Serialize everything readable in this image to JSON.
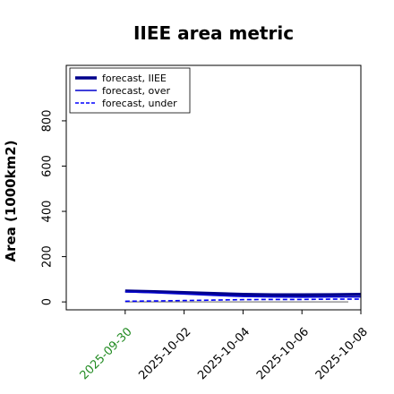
{
  "chart_data": {
    "type": "line",
    "title": "IIEE area metric",
    "xlabel": "",
    "ylabel": "Area (1000km2)",
    "x": [
      "2025-09-30",
      "2025-10-01",
      "2025-10-02",
      "2025-10-03",
      "2025-10-04",
      "2025-10-05",
      "2025-10-06",
      "2025-10-07",
      "2025-10-08"
    ],
    "x_ticks": [
      "2025-09-30",
      "2025-10-02",
      "2025-10-04",
      "2025-10-06",
      "2025-10-08"
    ],
    "x_tick_colors": [
      "#228b22",
      "#000000",
      "#000000",
      "#000000",
      "#000000"
    ],
    "xlim": [
      "2025-09-28",
      "2025-10-08"
    ],
    "ylim": [
      -35,
      1045
    ],
    "y_ticks": [
      0,
      200,
      400,
      600,
      800
    ],
    "grid": false,
    "legend_position": "top-left",
    "series": [
      {
        "name": "forecast, IIEE",
        "color": "#00008b",
        "style": "solid-thick",
        "values": [
          48,
          45,
          41,
          37,
          33,
          31,
          31,
          32,
          33
        ]
      },
      {
        "name": "forecast, over",
        "color": "#0000cd",
        "style": "solid",
        "values": [
          45,
          40,
          35,
          29,
          24,
          22,
          21,
          22,
          22
        ]
      },
      {
        "name": "forecast, under",
        "color": "#0000ff",
        "style": "dashed",
        "values": [
          3,
          4,
          6,
          8,
          10,
          11,
          11,
          12,
          12
        ]
      }
    ],
    "reference_line": {
      "y": 0,
      "color": "#808080"
    }
  }
}
